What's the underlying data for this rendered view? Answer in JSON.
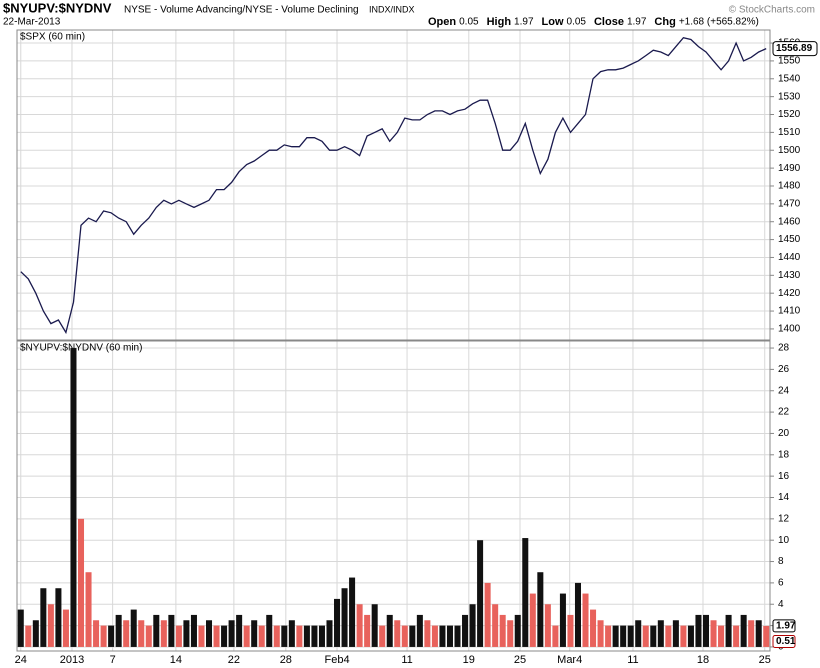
{
  "header": {
    "symbol": "$NYUPV:$NYDNV",
    "description": "NYSE - Volume Advancing/NYSE - Volume Declining",
    "exchange": "INDX/INDX",
    "date": "22-Mar-2013",
    "watermark": "© StockCharts.com",
    "quote": [
      {
        "label": "Open",
        "value": 0.05
      },
      {
        "label": "High",
        "value": 1.97
      },
      {
        "label": "Low",
        "value": 0.05
      },
      {
        "label": "Close",
        "value": 1.97
      },
      {
        "label": "Chg",
        "value": "+1.68 (+565.82%)"
      }
    ]
  },
  "chart_data": [
    {
      "type": "line",
      "title": "$SPX (60 min)",
      "color": "#1a1a4e",
      "x": [
        0,
        1,
        2,
        3,
        4,
        5,
        6,
        7,
        8,
        9,
        10,
        11,
        12,
        13,
        14,
        15,
        16,
        17,
        18,
        19,
        20,
        21,
        22,
        23,
        24,
        25,
        26,
        27,
        28,
        29,
        30,
        31,
        32,
        33,
        34,
        35,
        36,
        37,
        38,
        39,
        40,
        41,
        42,
        43,
        44,
        45,
        46,
        47,
        48,
        49,
        50,
        51,
        52,
        53,
        54,
        55,
        56,
        57,
        58,
        59,
        60,
        61,
        62,
        63,
        64,
        65,
        66,
        67,
        68,
        69,
        70,
        71,
        72,
        73,
        74,
        75,
        76,
        77,
        78,
        79,
        80,
        81,
        82,
        83,
        84,
        85,
        86,
        87,
        88,
        89,
        90,
        91,
        92,
        93,
        94,
        95,
        96,
        97,
        98,
        99
      ],
      "values": [
        1432,
        1428,
        1420,
        1410,
        1403,
        1405,
        1398,
        1415,
        1458,
        1462,
        1460,
        1466,
        1465,
        1462,
        1460,
        1453,
        1458,
        1462,
        1468,
        1472,
        1470,
        1472,
        1470,
        1468,
        1470,
        1472,
        1478,
        1478,
        1482,
        1488,
        1492,
        1494,
        1497,
        1500,
        1500,
        1503,
        1502,
        1502,
        1507,
        1507,
        1505,
        1500,
        1500,
        1502,
        1500,
        1497,
        1508,
        1510,
        1512,
        1505,
        1510,
        1518,
        1517,
        1517,
        1520,
        1522,
        1522,
        1520,
        1522,
        1523,
        1526,
        1528,
        1528,
        1515,
        1500,
        1500,
        1505,
        1515,
        1500,
        1487,
        1495,
        1510,
        1518,
        1510,
        1515,
        1520,
        1540,
        1544,
        1545,
        1545,
        1546,
        1548,
        1550,
        1553,
        1556,
        1555,
        1553,
        1558,
        1563,
        1562,
        1558,
        1555,
        1550,
        1545,
        1550,
        1560,
        1550,
        1552,
        1555,
        1556.89
      ],
      "xlim": [
        -0.5,
        99.5
      ],
      "ylim": [
        1393.8,
        1567.3
      ],
      "yticks": [
        1400,
        1410,
        1420,
        1430,
        1440,
        1450,
        1460,
        1470,
        1480,
        1490,
        1500,
        1510,
        1520,
        1530,
        1540,
        1550,
        1560
      ],
      "grid": true
    },
    {
      "type": "bar",
      "title": "$NYUPV:$NYDNV (60 min)",
      "up_color": "#111111",
      "down_color": "#e8625c",
      "tag_color": "#b00000",
      "x": [
        0,
        1,
        2,
        3,
        4,
        5,
        6,
        7,
        8,
        9,
        10,
        11,
        12,
        13,
        14,
        15,
        16,
        17,
        18,
        19,
        20,
        21,
        22,
        23,
        24,
        25,
        26,
        27,
        28,
        29,
        30,
        31,
        32,
        33,
        34,
        35,
        36,
        37,
        38,
        39,
        40,
        41,
        42,
        43,
        44,
        45,
        46,
        47,
        48,
        49,
        50,
        51,
        52,
        53,
        54,
        55,
        56,
        57,
        58,
        59,
        60,
        61,
        62,
        63,
        64,
        65,
        66,
        67,
        68,
        69,
        70,
        71,
        72,
        73,
        74,
        75,
        76,
        77,
        78,
        79,
        80,
        81,
        82,
        83,
        84,
        85,
        86,
        87,
        88,
        89,
        90,
        91,
        92,
        93,
        94,
        95,
        96,
        97,
        98,
        99
      ],
      "values": [
        3.5,
        2,
        2.5,
        5.5,
        4,
        5.5,
        3.5,
        28,
        12,
        7,
        2.5,
        2,
        2,
        3,
        2.5,
        3.5,
        2.5,
        2,
        3,
        2.5,
        3,
        2,
        2.5,
        3,
        2,
        2.5,
        2,
        2,
        2.5,
        3,
        2,
        2.5,
        2,
        3,
        2,
        2,
        2.5,
        2,
        2,
        2,
        2,
        2.5,
        4.5,
        5.5,
        6.5,
        4,
        3,
        4,
        2,
        3,
        2.5,
        2,
        2,
        3,
        2.5,
        2,
        2,
        2,
        2,
        3,
        4,
        10,
        6,
        4,
        3,
        2.5,
        3,
        10.2,
        5,
        7,
        4,
        2,
        5,
        3,
        6,
        5,
        3.5,
        2.5,
        2,
        2,
        2,
        2,
        2.5,
        2,
        2,
        2.5,
        2,
        2.5,
        2,
        2,
        3,
        3,
        2.5,
        2,
        3,
        2,
        3,
        2.5,
        2.5,
        1.97
      ],
      "reference_tag": 0.51,
      "xlim": [
        -0.5,
        99.5
      ],
      "ylim": [
        -0.38,
        28.66
      ],
      "yticks": [
        0,
        2,
        4,
        6,
        8,
        10,
        12,
        14,
        16,
        18,
        20,
        22,
        24,
        26,
        28
      ],
      "xticks": [
        {
          "value": 0,
          "label": "24"
        },
        {
          "value": 6.8,
          "label": "2013"
        },
        {
          "value": 12.2,
          "label": "7"
        },
        {
          "value": 20.6,
          "label": "14"
        },
        {
          "value": 28.3,
          "label": "22"
        },
        {
          "value": 35.2,
          "label": "28"
        },
        {
          "value": 42,
          "label": "Feb4"
        },
        {
          "value": 51.3,
          "label": "11"
        },
        {
          "value": 59.5,
          "label": "19"
        },
        {
          "value": 66.3,
          "label": "25"
        },
        {
          "value": 72.9,
          "label": "Mar4"
        },
        {
          "value": 81.3,
          "label": "11"
        },
        {
          "value": 90.6,
          "label": "18"
        },
        {
          "value": 98.8,
          "label": "25"
        }
      ],
      "grid": true
    }
  ]
}
